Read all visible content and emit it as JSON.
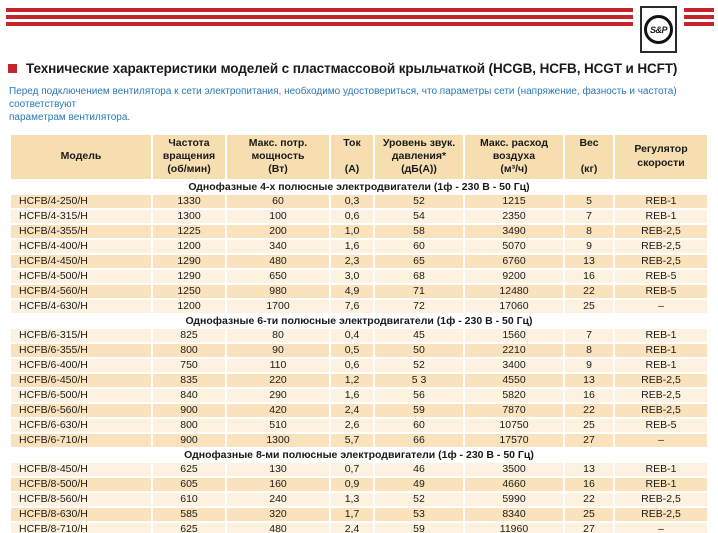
{
  "logo": {
    "text": "S&P"
  },
  "page": {
    "title": "Технические характеристики моделей с пластмассовой крыльчаткой (HCGB, HCFB, HCGT и HCFT)",
    "intro": "Перед подключением вентилятора к сети электропитания, необходимо удостовериться, что параметры сети (напряжение, фазность и частота) соответствуют\nпараметрам вентилятора."
  },
  "colors": {
    "accent_red": "#c4252b",
    "intro_blue": "#2979b5",
    "header_bg": "#f6deb0",
    "row_dark": "#fae3bc",
    "row_light": "#fdf2df"
  },
  "table": {
    "columns": [
      {
        "id": "model",
        "label": "Модель"
      },
      {
        "id": "speed",
        "label": "Частота\nвращения\n(об/мин)"
      },
      {
        "id": "power",
        "label": "Макс. потр.\nмощность\n(Вт)"
      },
      {
        "id": "current",
        "label": "Ток\n\n(А)"
      },
      {
        "id": "noise",
        "label": "Уровень звук.\nдавления*\n(дБ(А))"
      },
      {
        "id": "airflow",
        "label": "Макс. расход\nвоздуха\n(м³/ч)"
      },
      {
        "id": "weight",
        "label": "Вес\n\n(кг)"
      },
      {
        "id": "regulator",
        "label": "Регулятор\nскорости"
      }
    ],
    "sections": [
      {
        "header": "Однофазные 4-х полюсные электродвигатели (1ф - 230 В - 50 Гц)",
        "first_shade": "dark",
        "rows": [
          [
            "HCFB/4-250/H",
            "1330",
            "60",
            "0,3",
            "52",
            "1215",
            "5",
            "REB-1"
          ],
          [
            "HCFB/4-315/H",
            "1300",
            "100",
            "0,6",
            "54",
            "2350",
            "7",
            "REB-1"
          ],
          [
            "HCFB/4-355/H",
            "1225",
            "200",
            "1,0",
            "58",
            "3490",
            "8",
            "REB-2,5"
          ],
          [
            "HCFB/4-400/H",
            "1200",
            "340",
            "1,6",
            "60",
            "5070",
            "9",
            "REB-2,5"
          ],
          [
            "HCFB/4-450/H",
            "1290",
            "480",
            "2,3",
            "65",
            "6760",
            "13",
            "REB-2,5"
          ],
          [
            "HCFB/4-500/H",
            "1290",
            "650",
            "3,0",
            "68",
            "9200",
            "16",
            "REB-5"
          ],
          [
            "HCFB/4-560/H",
            "1250",
            "980",
            "4,9",
            "71",
            "12480",
            "22",
            "REB-5"
          ],
          [
            "HCFB/4-630/H",
            "1200",
            "1700",
            "7,6",
            "72",
            "17060",
            "25",
            "–"
          ]
        ]
      },
      {
        "header": "Однофазные 6-ти полюсные электродвигатели (1ф - 230 В - 50 Гц)",
        "first_shade": "light",
        "rows": [
          [
            "HCFB/6-315/H",
            "825",
            "80",
            "0,4",
            "45",
            "1560",
            "7",
            "REB-1"
          ],
          [
            "HCFB/6-355/H",
            "800",
            "90",
            "0,5",
            "50",
            "2210",
            "8",
            "REB-1"
          ],
          [
            "HCFB/6-400/H",
            "750",
            "110",
            "0,6",
            "52",
            "3400",
            "9",
            "REB-1"
          ],
          [
            "HCFB/6-450/H",
            "835",
            "220",
            "1,2",
            "5 3",
            "4550",
            "13",
            "REB-2,5"
          ],
          [
            "HCFB/6-500/H",
            "840",
            "290",
            "1,6",
            "56",
            "5820",
            "16",
            "REB-2,5"
          ],
          [
            "HCFB/6-560/H",
            "900",
            "420",
            "2,4",
            "59",
            "7870",
            "22",
            "REB-2,5"
          ],
          [
            "HCFB/6-630/H",
            "800",
            "510",
            "2,6",
            "60",
            "10750",
            "25",
            "REB-5"
          ],
          [
            "HCFB/6-710/H",
            "900",
            "1300",
            "5,7",
            "66",
            "17570",
            "27",
            "–"
          ]
        ]
      },
      {
        "header": "Однофазные 8-ми полюсные электродвигатели (1ф - 230 В - 50 Гц)",
        "first_shade": "light",
        "rows": [
          [
            "HCFB/8-450/H",
            "625",
            "130",
            "0,7",
            "46",
            "3500",
            "13",
            "REB-1"
          ],
          [
            "HCFB/8-500/H",
            "605",
            "160",
            "0,9",
            "49",
            "4660",
            "16",
            "REB-1"
          ],
          [
            "HCFB/8-560/H",
            "610",
            "240",
            "1,3",
            "52",
            "5990",
            "22",
            "REB-2,5"
          ],
          [
            "HCFB/8-630/H",
            "585",
            "320",
            "1,7",
            "53",
            "8340",
            "25",
            "REB-2,5"
          ],
          [
            "HCFB/8-710/H",
            "625",
            "480",
            "2,4",
            "59",
            "11960",
            "27",
            "–"
          ]
        ]
      }
    ]
  }
}
